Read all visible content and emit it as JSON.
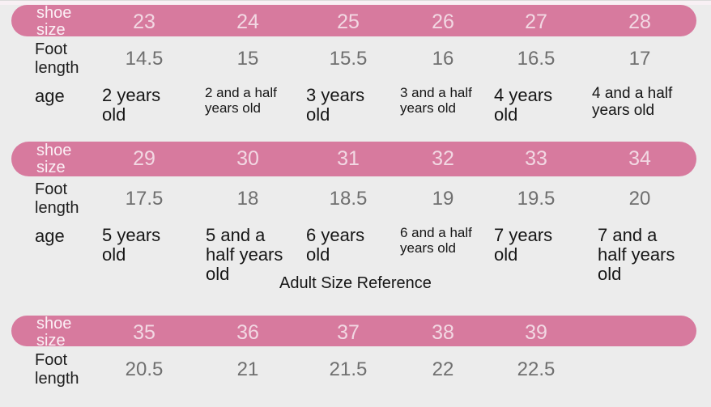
{
  "colors": {
    "header_bar": "#d77a9e",
    "header_label_text": "#fbeff5",
    "header_number_text": "#f2d8e3",
    "background": "#ececec",
    "foot_length_value_text": "#6f6f6f",
    "dark_text": "#1b1b1b"
  },
  "adult_reference_title": "Adult Size Reference",
  "sections": [
    {
      "shoe_size_label": "shoe size",
      "sizes": [
        "23",
        "24",
        "25",
        "26",
        "27",
        "28"
      ],
      "foot_length_label": "Foot length",
      "foot_lengths": [
        "14.5",
        "15",
        "15.5",
        "16",
        "16.5",
        "17"
      ],
      "age_label": "age",
      "ages": [
        "2 years old",
        "2 and a half years old",
        "3 years old",
        "3 and a half years old",
        "4 years old",
        "4 and a half years old"
      ]
    },
    {
      "shoe_size_label": "shoe size",
      "sizes": [
        "29",
        "30",
        "31",
        "32",
        "33",
        "34"
      ],
      "foot_length_label": "Foot length",
      "foot_lengths": [
        "17.5",
        "18",
        "18.5",
        "19",
        "19.5",
        "20"
      ],
      "age_label": "age",
      "ages": [
        "5 years old",
        "5 and a half years old",
        "6 years old",
        "6 and a half years old",
        "7 years old",
        "7 and a half years old"
      ]
    },
    {
      "shoe_size_label": "shoe size",
      "sizes": [
        "35",
        "36",
        "37",
        "38",
        "39"
      ],
      "foot_length_label": "Foot length",
      "foot_lengths": [
        "20.5",
        "21",
        "21.5",
        "22",
        "22.5"
      ]
    }
  ]
}
